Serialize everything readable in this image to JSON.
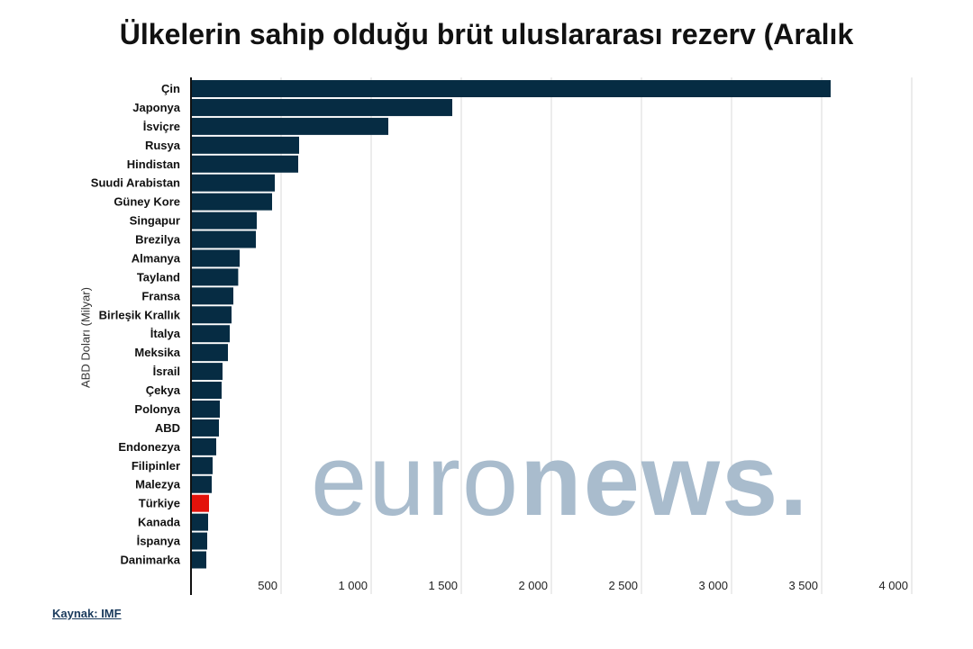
{
  "title": "Ülkelerin sahip olduğu brüt uluslararası rezerv (Aralık",
  "source": "Kaynak: IMF",
  "watermark": {
    "light": "euro",
    "bold": "news."
  },
  "colors": {
    "bar": "#062c43",
    "highlight": "#e3120b",
    "grid": "#d9d9d9",
    "axis": "#111111",
    "watermark": "#a9bccd"
  },
  "chart_data": {
    "type": "bar",
    "orientation": "horizontal",
    "ylabel": "ABD Doları (Milyar)",
    "xlabel": "",
    "xlim": [
      0,
      4000
    ],
    "xticks": [
      500,
      1000,
      1500,
      2000,
      2500,
      3000,
      3500,
      4000
    ],
    "xtick_labels": [
      "500",
      "1 000",
      "1 500",
      "2 000",
      "2 500",
      "3 000",
      "3 500",
      "4 000"
    ],
    "grid": "vertical",
    "highlight": "Türkiye",
    "categories": [
      "Çin",
      "Japonya",
      "İsviçre",
      "Rusya",
      "Hindistan",
      "Suudi Arabistan",
      "Güney Kore",
      "Singapur",
      "Brezilya",
      "Almanya",
      "Tayland",
      "Fransa",
      "Birleşik Krallık",
      "İtalya",
      "Meksika",
      "İsrail",
      "Çekya",
      "Polonya",
      "ABD",
      "Endonezya",
      "Filipinler",
      "Malezya",
      "Türkiye",
      "Kanada",
      "İspanya",
      "Danimarka"
    ],
    "values": [
      3550,
      1450,
      1095,
      600,
      595,
      465,
      450,
      365,
      360,
      270,
      262,
      235,
      225,
      215,
      205,
      175,
      170,
      160,
      155,
      140,
      120,
      115,
      100,
      95,
      90,
      85
    ]
  }
}
